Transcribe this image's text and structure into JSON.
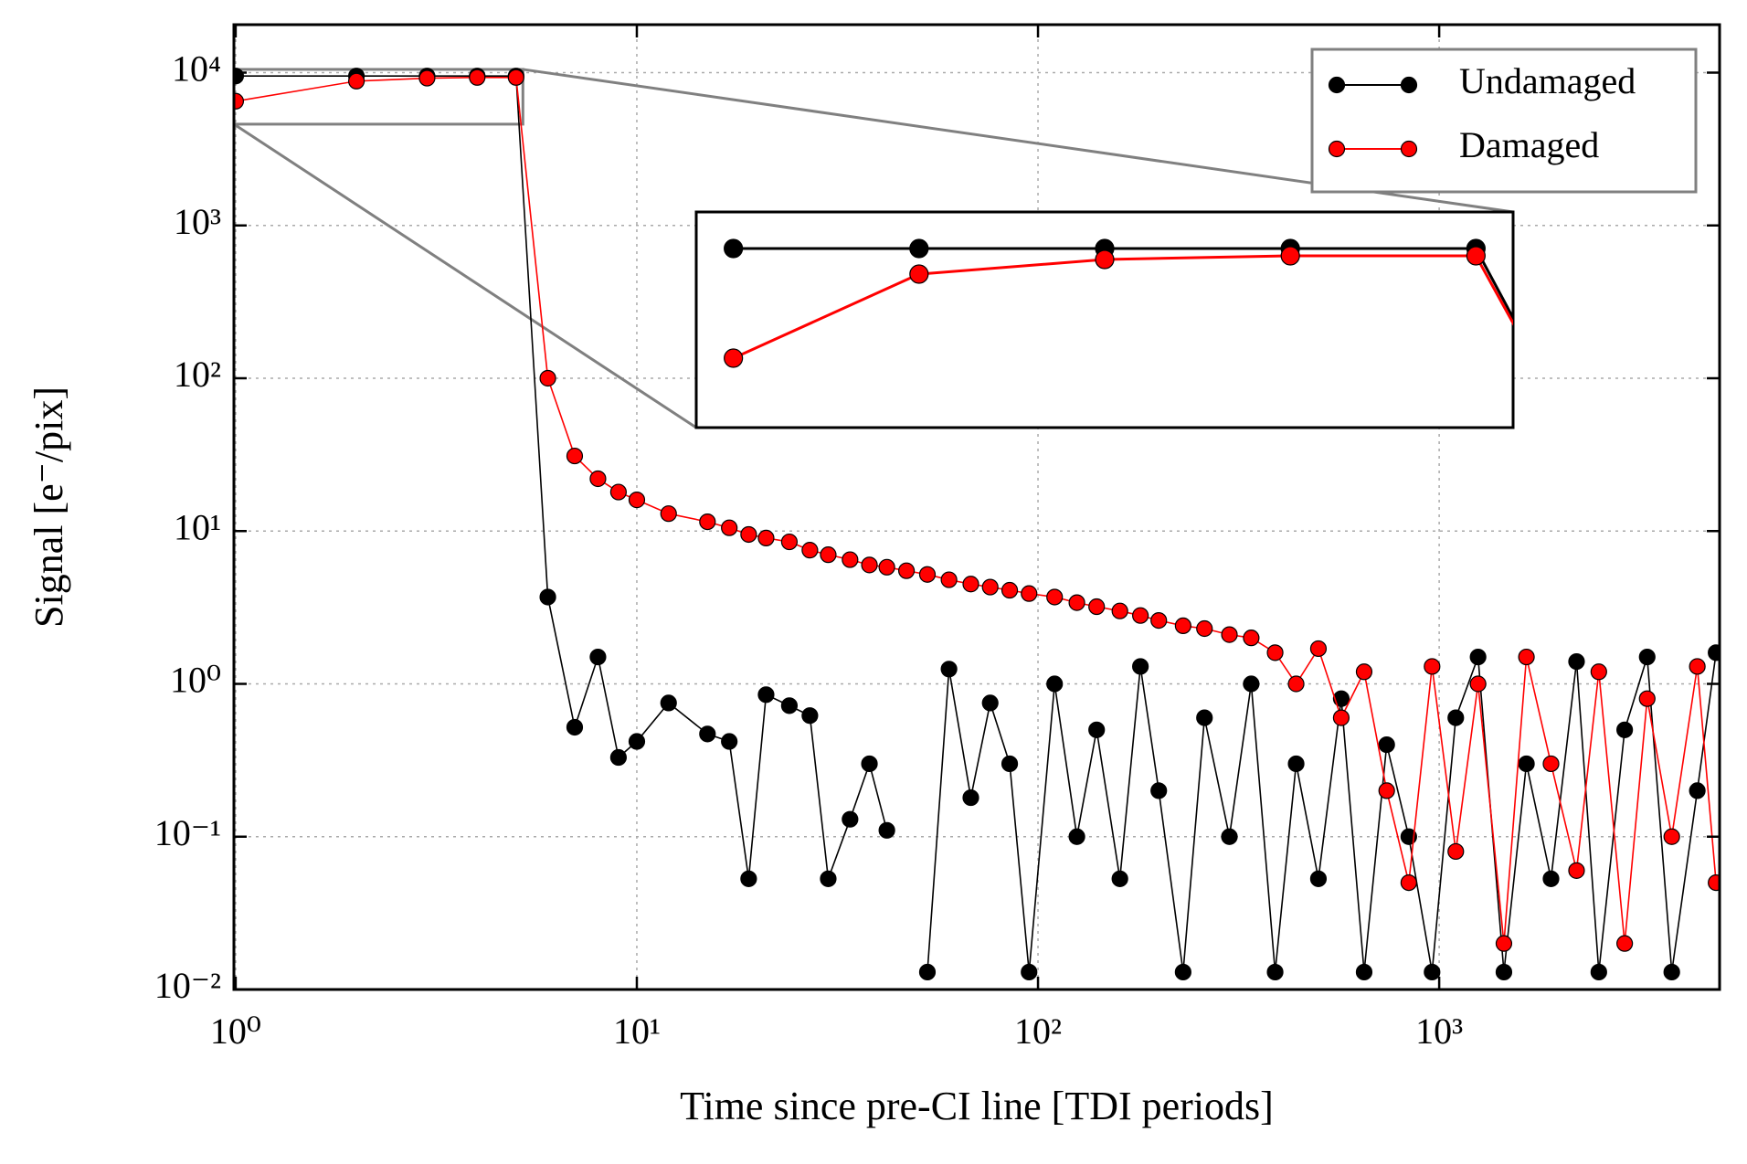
{
  "chart_data": {
    "type": "line",
    "xlabel": "Time since pre-CI line [TDI periods]",
    "ylabel": "Signal [e⁻/pix]",
    "xscale": "log",
    "yscale": "log",
    "grid": true,
    "legend": "upper right",
    "xlim": [
      0.99,
      5000
    ],
    "ylim": [
      0.01,
      20600
    ],
    "xticks": [
      {
        "value": 1,
        "label": "10⁰"
      },
      {
        "value": 10,
        "label": "10¹"
      },
      {
        "value": 100,
        "label": "10²"
      },
      {
        "value": 1000,
        "label": "10³"
      }
    ],
    "yticks": [
      {
        "value": 0.01,
        "label": "10⁻²"
      },
      {
        "value": 0.1,
        "label": "10⁻¹"
      },
      {
        "value": 1,
        "label": "10⁰"
      },
      {
        "value": 10,
        "label": "10¹"
      },
      {
        "value": 100,
        "label": "10²"
      },
      {
        "value": 1000,
        "label": "10³"
      },
      {
        "value": 10000,
        "label": "10⁴"
      }
    ],
    "x": [
      1,
      2,
      3,
      4,
      5,
      6,
      7,
      8,
      9,
      10,
      12,
      15,
      17,
      19,
      21,
      24,
      27,
      30,
      34,
      38,
      42,
      47,
      53,
      60,
      68,
      76,
      85,
      95,
      110,
      125,
      140,
      160,
      180,
      200,
      230,
      260,
      300,
      340,
      390,
      440,
      500,
      570,
      650,
      740,
      840,
      960,
      1100,
      1250,
      1450,
      1650,
      1900,
      2200,
      2500,
      2900,
      3300,
      3800,
      4400,
      4900
    ],
    "series": [
      {
        "name": "Undamaged",
        "color": "#000000",
        "values": [
          9500,
          9500,
          9500,
          9500,
          9500,
          3.7,
          0.52,
          1.5,
          0.33,
          0.42,
          0.75,
          0.47,
          0.42,
          0.053,
          0.85,
          0.72,
          0.62,
          0.053,
          0.13,
          0.3,
          0.11,
          null,
          0.013,
          1.25,
          0.18,
          0.75,
          0.3,
          0.013,
          1.0,
          0.1,
          0.5,
          0.053,
          1.3,
          0.2,
          0.013,
          0.6,
          0.1,
          1.0,
          0.013,
          0.3,
          0.053,
          0.8,
          0.013,
          0.4,
          0.1,
          0.013,
          0.6,
          1.5,
          0.013,
          0.3,
          0.053,
          1.4,
          0.013,
          0.5,
          1.5,
          0.013,
          0.2,
          1.6
        ]
      },
      {
        "name": "Damaged",
        "color": "#ff0000",
        "values": [
          6500,
          8800,
          9200,
          9300,
          9300,
          100,
          31,
          22,
          18,
          16,
          13,
          11.5,
          10.5,
          9.5,
          9,
          8.5,
          7.5,
          7,
          6.5,
          6,
          5.8,
          5.5,
          5.2,
          4.8,
          4.5,
          4.3,
          4.1,
          3.9,
          3.7,
          3.4,
          3.2,
          3.0,
          2.8,
          2.6,
          2.4,
          2.3,
          2.1,
          2.0,
          1.6,
          1.0,
          1.7,
          0.6,
          1.2,
          0.2,
          0.05,
          1.3,
          0.08,
          1.0,
          0.02,
          1.5,
          0.3,
          0.06,
          1.2,
          0.02,
          0.8,
          0.1,
          1.3,
          0.05
        ]
      }
    ],
    "inset": {
      "xlim": [
        0.8,
        5.2
      ],
      "ylim": [
        4600,
        10500
      ]
    }
  }
}
